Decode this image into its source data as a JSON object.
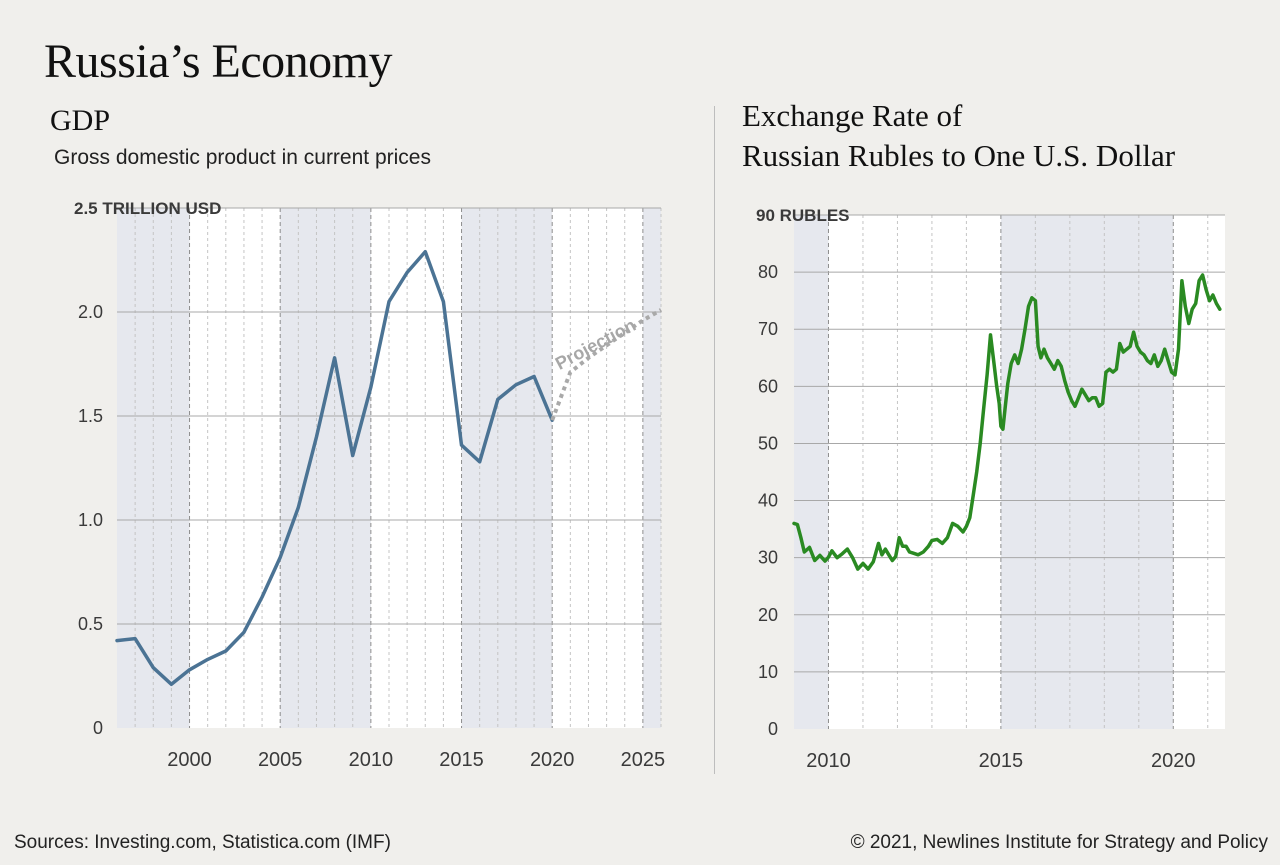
{
  "page": {
    "title": "Russia’s Economy",
    "footer_left": "Sources: Investing.com,  Statistica.com (IMF)",
    "footer_right": "© 2021, Newlines Institute for Strategy and Policy"
  },
  "chart_data": [
    {
      "type": "line",
      "title": "GDP",
      "subtitle": "Gross domestic product in current prices",
      "xlabel": "",
      "ylabel": "",
      "y_unit_label": "2.5 TRILLION USD",
      "xlim": [
        1996,
        2026
      ],
      "ylim": [
        0,
        2.5
      ],
      "y_ticks": [
        0,
        0.5,
        1.0,
        1.5,
        2.0
      ],
      "y_tick_labels": [
        "0",
        "0.5",
        "1.0",
        "1.5",
        "2.0"
      ],
      "x_ticks": [
        2000,
        2005,
        2010,
        2015,
        2020,
        2025
      ],
      "x_tick_labels": [
        "2000",
        "2005",
        "2010",
        "2015",
        "2020",
        "2025"
      ],
      "shaded_periods": [
        [
          1996,
          2000
        ],
        [
          2005,
          2010
        ],
        [
          2015,
          2020
        ],
        [
          2025,
          2026
        ]
      ],
      "grid": true,
      "line_color": "#4b7394",
      "projection_color": "#a9a9a9",
      "projection_label": "Projection",
      "series": [
        {
          "x": [
            1996,
            1997,
            1998,
            1999,
            2000,
            2001,
            2002,
            2003,
            2004,
            2005,
            2006,
            2007,
            2008,
            2009,
            2010,
            2011,
            2012,
            2013,
            2014,
            2015,
            2016,
            2017,
            2018,
            2019,
            2020
          ],
          "values": [
            0.42,
            0.43,
            0.29,
            0.21,
            0.28,
            0.33,
            0.37,
            0.46,
            0.63,
            0.82,
            1.06,
            1.4,
            1.78,
            1.31,
            1.64,
            2.05,
            2.19,
            2.29,
            2.05,
            1.36,
            1.28,
            1.58,
            1.65,
            1.69,
            1.48
          ]
        },
        {
          "x": [
            2020,
            2021,
            2022,
            2023,
            2024,
            2025,
            2026
          ],
          "values": [
            1.48,
            1.71,
            1.78,
            1.84,
            1.9,
            1.96,
            2.01
          ]
        }
      ]
    },
    {
      "type": "line",
      "title_line1": "Exchange Rate of",
      "title_line2": "Russian Rubles to One U.S. Dollar",
      "xlabel": "",
      "ylabel": "",
      "y_unit_label": "90 RUBLES",
      "xlim": [
        2009,
        2021.5
      ],
      "ylim": [
        0,
        90
      ],
      "y_ticks": [
        0,
        10,
        20,
        30,
        40,
        50,
        60,
        70,
        80
      ],
      "y_tick_labels": [
        "0",
        "10",
        "20",
        "30",
        "40",
        "50",
        "60",
        "70",
        "80"
      ],
      "x_ticks": [
        2010,
        2015,
        2020
      ],
      "x_tick_labels": [
        "2010",
        "2015",
        "2020"
      ],
      "shaded_periods": [
        [
          2009,
          2010
        ],
        [
          2015,
          2020
        ]
      ],
      "grid": true,
      "line_color": "#2a8a22",
      "series": [
        {
          "x": [
            2009.0,
            2009.1,
            2009.2,
            2009.3,
            2009.45,
            2009.6,
            2009.75,
            2009.9,
            2010.0,
            2010.1,
            2010.25,
            2010.4,
            2010.55,
            2010.7,
            2010.85,
            2011.0,
            2011.15,
            2011.3,
            2011.45,
            2011.55,
            2011.65,
            2011.75,
            2011.85,
            2011.95,
            2012.05,
            2012.15,
            2012.25,
            2012.35,
            2012.45,
            2012.6,
            2012.75,
            2012.9,
            2013.0,
            2013.15,
            2013.3,
            2013.45,
            2013.6,
            2013.75,
            2013.9,
            2014.0,
            2014.1,
            2014.2,
            2014.3,
            2014.4,
            2014.5,
            2014.6,
            2014.7,
            2014.8,
            2014.88,
            2014.95,
            2015.0,
            2015.06,
            2015.12,
            2015.2,
            2015.3,
            2015.4,
            2015.5,
            2015.6,
            2015.7,
            2015.8,
            2015.9,
            2016.0,
            2016.08,
            2016.16,
            2016.25,
            2016.35,
            2016.45,
            2016.55,
            2016.65,
            2016.75,
            2016.85,
            2016.95,
            2017.05,
            2017.15,
            2017.25,
            2017.35,
            2017.45,
            2017.55,
            2017.65,
            2017.75,
            2017.85,
            2017.95,
            2018.05,
            2018.15,
            2018.25,
            2018.35,
            2018.45,
            2018.55,
            2018.65,
            2018.75,
            2018.85,
            2018.95,
            2019.05,
            2019.15,
            2019.25,
            2019.35,
            2019.45,
            2019.55,
            2019.65,
            2019.75,
            2019.85,
            2019.95,
            2020.05,
            2020.15,
            2020.25,
            2020.35,
            2020.45,
            2020.55,
            2020.65,
            2020.75,
            2020.85,
            2020.95,
            2021.05,
            2021.15,
            2021.25,
            2021.35
          ],
          "values": [
            36.0,
            35.8,
            33.5,
            31.0,
            31.8,
            29.5,
            30.4,
            29.4,
            30.1,
            31.2,
            30.0,
            30.7,
            31.5,
            30.0,
            28.0,
            29.0,
            28.0,
            29.3,
            32.5,
            30.5,
            31.5,
            30.5,
            29.5,
            30.2,
            33.5,
            32.0,
            32.0,
            31.0,
            30.8,
            30.5,
            31.0,
            32.0,
            33.0,
            33.2,
            32.5,
            33.5,
            36.0,
            35.5,
            34.5,
            35.5,
            37.0,
            41.0,
            45.0,
            50.0,
            56.0,
            62.0,
            69.0,
            64.0,
            60.0,
            57.0,
            53.0,
            52.5,
            56.0,
            60.5,
            64.0,
            65.5,
            64.0,
            66.5,
            70.0,
            74.0,
            75.5,
            75.0,
            67.0,
            65.0,
            66.5,
            65.0,
            64.0,
            63.0,
            64.5,
            63.5,
            61.0,
            59.0,
            57.5,
            56.5,
            58.0,
            59.5,
            58.5,
            57.5,
            58.0,
            58.0,
            56.5,
            57.0,
            62.5,
            63.0,
            62.5,
            63.0,
            67.5,
            66.0,
            66.5,
            67.0,
            69.5,
            67.0,
            66.0,
            65.5,
            64.5,
            64.0,
            65.5,
            63.5,
            64.5,
            66.5,
            64.5,
            62.5,
            62.0,
            66.5,
            78.5,
            74.0,
            71.0,
            73.5,
            74.5,
            78.5,
            79.5,
            77.0,
            75.0,
            76.0,
            74.5,
            73.5
          ]
        }
      ]
    }
  ]
}
